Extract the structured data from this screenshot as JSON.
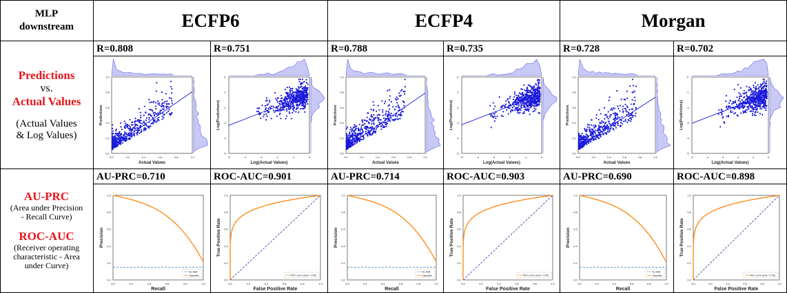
{
  "header": {
    "corner_line1": "MLP",
    "corner_line2": "downstream",
    "methods": [
      "ECFP6",
      "ECFP4",
      "Morgan"
    ]
  },
  "row1": {
    "title_red_1": "Predictions",
    "vs": "vs.",
    "title_red_2": "Actual Values",
    "note_1": "(Actual Values",
    "note_2": "& Log Values)",
    "metrics": [
      "R=0.808",
      "R=0.751",
      "R=0.788",
      "R=0.735",
      "R=0.728",
      "R=0.702"
    ]
  },
  "row2": {
    "title_red_1": "AU-PRC",
    "note_1a": "(Area under Precision",
    "note_1b": "- Recall Curve)",
    "title_red_2": "ROC-AUC",
    "note_2a": "(Receiver operating",
    "note_2b": "characteristic - Area",
    "note_2c": "under Curve)",
    "metrics": [
      "AU-PRC=0.710",
      "ROC-AUC=0.901",
      "AU-PRC=0.714",
      "ROC-AUC=0.903",
      "AU-PRC=0.690",
      "ROC-AUC=0.898"
    ]
  },
  "plot_text": {
    "linear_xlabel": "Actual Values",
    "linear_ylabel": "Predictions",
    "log_xlabel": "Log(Actual Values)",
    "log_ylabel": "Log(Predictions)",
    "pr_xlabel": "Recall",
    "pr_ylabel": "Precision",
    "pr_legend_noskill": "No Skill",
    "pr_legend_classifier": "Classifier",
    "roc_xlabel": "False Positive Rate",
    "roc_ylabel": "True Positive Rate",
    "roc_legends": [
      "ROC curve (area = 0.90)",
      "ROC curve (area = 0.90)",
      "ROC curve (area = 0.90)"
    ],
    "ticks_01": [
      "0.0",
      "0.2",
      "0.4",
      "0.6",
      "0.8",
      "1.0"
    ],
    "ticks_log": [
      "-5",
      "-4",
      "-3",
      "-2",
      "-1",
      "0"
    ]
  },
  "colors": {
    "red_title": "#e8141b",
    "scatter_point": "#1a1adc",
    "histogram": "#6464e6",
    "curve": "#ff8c1a",
    "noskill": "#3f8fd0",
    "diagonal": "#2a2a9a"
  },
  "chart_data": [
    {
      "type": "scatter",
      "panel": "ECFP6 linear",
      "r": 0.808
    },
    {
      "type": "scatter",
      "panel": "ECFP6 log",
      "r": 0.751
    },
    {
      "type": "scatter",
      "panel": "ECFP4 linear",
      "r": 0.788
    },
    {
      "type": "scatter",
      "panel": "ECFP4 log",
      "r": 0.735
    },
    {
      "type": "scatter",
      "panel": "Morgan linear",
      "r": 0.728
    },
    {
      "type": "scatter",
      "panel": "Morgan log",
      "r": 0.702
    },
    {
      "type": "line",
      "panel": "ECFP6 PR",
      "au_prc": 0.71,
      "xlim": [
        0,
        1
      ],
      "ylim": [
        0,
        1
      ]
    },
    {
      "type": "line",
      "panel": "ECFP6 ROC",
      "roc_auc": 0.901,
      "xlim": [
        0,
        1
      ],
      "ylim": [
        0,
        1
      ]
    },
    {
      "type": "line",
      "panel": "ECFP4 PR",
      "au_prc": 0.714,
      "xlim": [
        0,
        1
      ],
      "ylim": [
        0,
        1
      ]
    },
    {
      "type": "line",
      "panel": "ECFP4 ROC",
      "roc_auc": 0.903,
      "xlim": [
        0,
        1
      ],
      "ylim": [
        0,
        1
      ]
    },
    {
      "type": "line",
      "panel": "Morgan PR",
      "au_prc": 0.69,
      "xlim": [
        0,
        1
      ],
      "ylim": [
        0,
        1
      ]
    },
    {
      "type": "line",
      "panel": "Morgan ROC",
      "roc_auc": 0.898,
      "xlim": [
        0,
        1
      ],
      "ylim": [
        0,
        1
      ]
    }
  ]
}
